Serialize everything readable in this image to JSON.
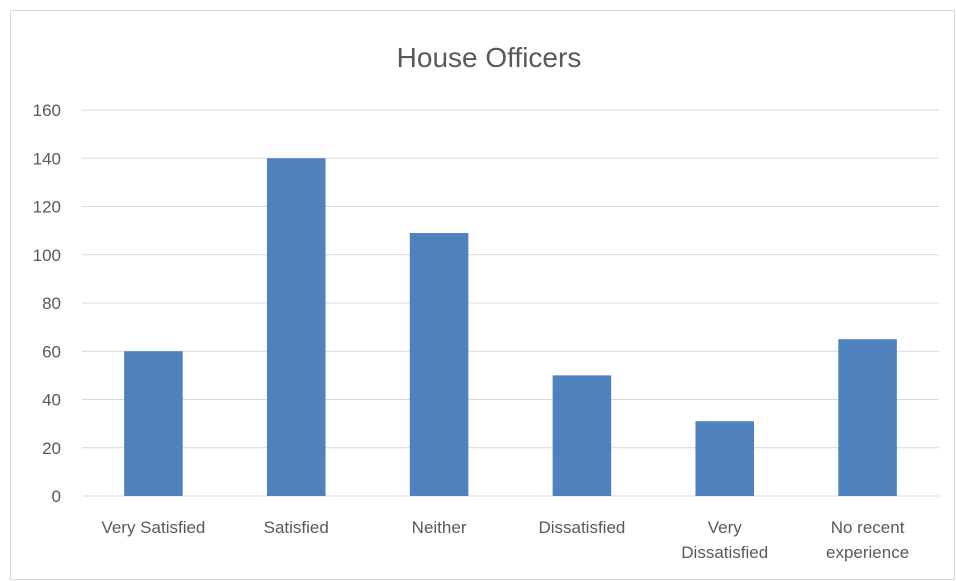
{
  "chart_data": {
    "type": "bar",
    "title": "House Officers",
    "categories": [
      "Very Satisfied",
      "Satisfied",
      "Neither",
      "Dissatisfied",
      "Very Dissatisfied",
      "No recent experience"
    ],
    "category_label_lines": [
      [
        "Very Satisfied"
      ],
      [
        "Satisfied"
      ],
      [
        "Neither"
      ],
      [
        "Dissatisfied"
      ],
      [
        "Very",
        "Dissatisfied"
      ],
      [
        "No recent",
        "experience"
      ]
    ],
    "values": [
      60,
      140,
      109,
      50,
      31,
      65
    ],
    "ylim": [
      0,
      160
    ],
    "yticks": [
      0,
      20,
      40,
      60,
      80,
      100,
      120,
      140,
      160
    ],
    "xlabel": "",
    "ylabel": "",
    "grid": true,
    "legend": "none",
    "bar_color": "#4f81bd"
  }
}
